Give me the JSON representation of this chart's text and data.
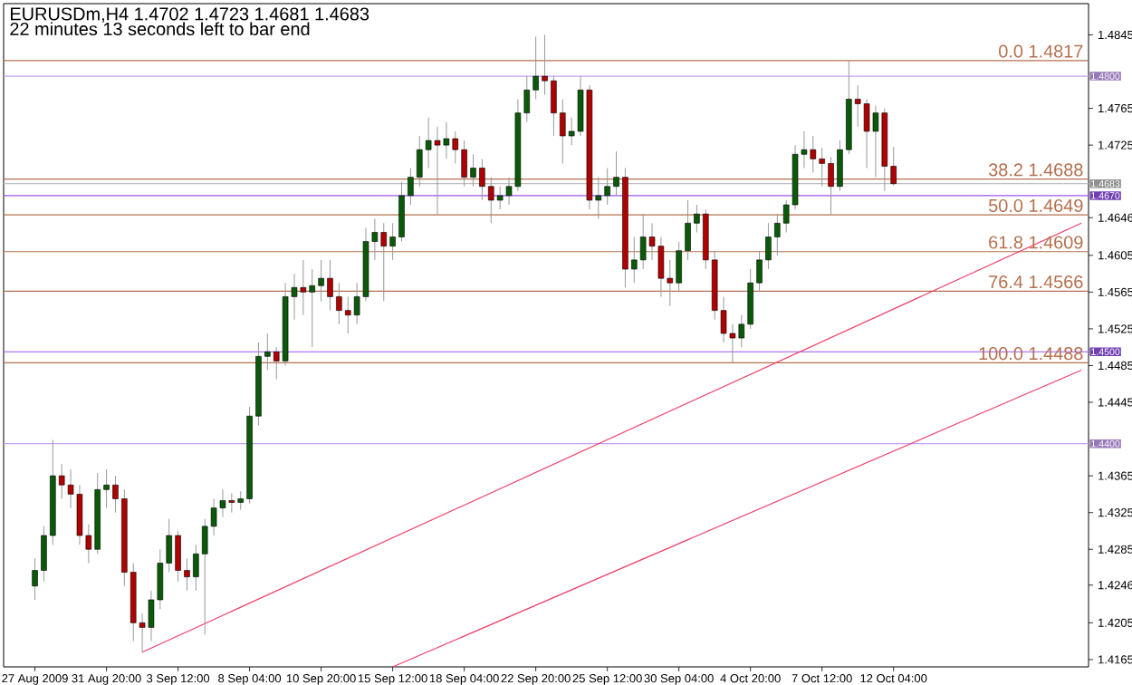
{
  "chart_data": {
    "type": "candlestick",
    "title": "EURUSDm,H4  1.4702 1.4723 1.4681 1.4683",
    "subtitle": "22 minutes 13 seconds left to bar end",
    "categories": [
      "27 Aug 2009",
      null,
      null,
      null,
      null,
      null,
      null,
      null,
      "31 Aug 20:00",
      null,
      null,
      null,
      null,
      null,
      null,
      null,
      "3 Sep 12:00",
      null,
      null,
      null,
      null,
      null,
      null,
      null,
      "8 Sep 04:00",
      null,
      null,
      null,
      null,
      null,
      null,
      null,
      "10 Sep 20:00",
      null,
      null,
      null,
      null,
      null,
      null,
      null,
      "15 Sep 12:00",
      null,
      null,
      null,
      null,
      null,
      null,
      null,
      "18 Sep 04:00",
      null,
      null,
      null,
      null,
      null,
      null,
      null,
      "22 Sep 20:00",
      null,
      null,
      null,
      null,
      null,
      null,
      null,
      "25 Sep 12:00",
      null,
      null,
      null,
      null,
      null,
      null,
      null,
      "30 Sep 04:00",
      null,
      null,
      null,
      null,
      null,
      null,
      null,
      "4 Oct 20:00",
      null,
      null,
      null,
      null,
      null,
      null,
      null,
      "7 Oct 12:00",
      null,
      null,
      null,
      null,
      null,
      null,
      null,
      "12 Oct 04:00",
      null,
      null,
      null,
      null,
      null,
      null,
      null,
      null,
      null,
      null,
      null,
      null,
      null,
      null,
      null,
      null,
      null,
      null,
      null,
      null,
      null
    ],
    "ylim": [
      1.4157,
      1.4879
    ],
    "yticks": [
      1.4845,
      1.4765,
      1.4725,
      1.4646,
      1.4605,
      1.4565,
      1.4525,
      1.4485,
      1.4445,
      1.4365,
      1.4325,
      1.4285,
      1.4246,
      1.4205,
      1.4165
    ],
    "ohlc": [
      [
        1.4245,
        1.4275,
        1.423,
        1.4262
      ],
      [
        1.4262,
        1.431,
        1.425,
        1.43
      ],
      [
        1.43,
        1.4404,
        1.429,
        1.4365
      ],
      [
        1.4365,
        1.4378,
        1.434,
        1.4355
      ],
      [
        1.4355,
        1.4372,
        1.433,
        1.4345
      ],
      [
        1.4345,
        1.4355,
        1.429,
        1.43
      ],
      [
        1.43,
        1.4312,
        1.427,
        1.4285
      ],
      [
        1.4285,
        1.4368,
        1.428,
        1.435
      ],
      [
        1.435,
        1.4372,
        1.433,
        1.4355
      ],
      [
        1.4355,
        1.4365,
        1.4325,
        1.434
      ],
      [
        1.434,
        1.435,
        1.4245,
        1.426
      ],
      [
        1.426,
        1.427,
        1.4185,
        1.4205
      ],
      [
        1.4205,
        1.4215,
        1.4173,
        1.42
      ],
      [
        1.42,
        1.424,
        1.4185,
        1.423
      ],
      [
        1.423,
        1.4285,
        1.422,
        1.427
      ],
      [
        1.427,
        1.4318,
        1.426,
        1.43
      ],
      [
        1.43,
        1.4305,
        1.425,
        1.4262
      ],
      [
        1.4262,
        1.4275,
        1.424,
        1.4255
      ],
      [
        1.4255,
        1.429,
        1.424,
        1.428
      ],
      [
        1.428,
        1.4318,
        1.4192,
        1.431
      ],
      [
        1.431,
        1.434,
        1.43,
        1.433
      ],
      [
        1.433,
        1.435,
        1.432,
        1.4338
      ],
      [
        1.4338,
        1.4346,
        1.4325,
        1.4336
      ],
      [
        1.4336,
        1.4348,
        1.4328,
        1.434
      ],
      [
        1.434,
        1.444,
        1.4335,
        1.443
      ],
      [
        1.443,
        1.451,
        1.442,
        1.4495
      ],
      [
        1.4495,
        1.452,
        1.448,
        1.45
      ],
      [
        1.45,
        1.4505,
        1.447,
        1.449
      ],
      [
        1.449,
        1.4575,
        1.4485,
        1.456
      ],
      [
        1.456,
        1.4585,
        1.4535,
        1.457
      ],
      [
        1.457,
        1.46,
        1.454,
        1.4565
      ],
      [
        1.4565,
        1.459,
        1.4505,
        1.4572
      ],
      [
        1.4572,
        1.46,
        1.4555,
        1.458
      ],
      [
        1.458,
        1.46,
        1.4545,
        1.456
      ],
      [
        1.456,
        1.4575,
        1.453,
        1.4545
      ],
      [
        1.4545,
        1.456,
        1.452,
        1.454
      ],
      [
        1.454,
        1.4575,
        1.453,
        1.456
      ],
      [
        1.456,
        1.4635,
        1.4555,
        1.462
      ],
      [
        1.462,
        1.4645,
        1.46,
        1.463
      ],
      [
        1.463,
        1.464,
        1.4555,
        1.4615
      ],
      [
        1.4615,
        1.464,
        1.46,
        1.4625
      ],
      [
        1.4625,
        1.4685,
        1.462,
        1.467
      ],
      [
        1.467,
        1.47,
        1.466,
        1.469
      ],
      [
        1.469,
        1.4735,
        1.468,
        1.472
      ],
      [
        1.472,
        1.4755,
        1.47,
        1.473
      ],
      [
        1.473,
        1.4745,
        1.465,
        1.4725
      ],
      [
        1.4725,
        1.475,
        1.471,
        1.4732
      ],
      [
        1.4732,
        1.474,
        1.4705,
        1.472
      ],
      [
        1.472,
        1.473,
        1.468,
        1.469
      ],
      [
        1.469,
        1.4715,
        1.468,
        1.47
      ],
      [
        1.47,
        1.471,
        1.4665,
        1.468
      ],
      [
        1.468,
        1.469,
        1.464,
        1.4665
      ],
      [
        1.4665,
        1.468,
        1.4655,
        1.467
      ],
      [
        1.467,
        1.469,
        1.466,
        1.468
      ],
      [
        1.468,
        1.4775,
        1.4675,
        1.476
      ],
      [
        1.476,
        1.48,
        1.475,
        1.4785
      ],
      [
        1.4785,
        1.4843,
        1.4775,
        1.48
      ],
      [
        1.48,
        1.4845,
        1.478,
        1.4795
      ],
      [
        1.4795,
        1.48,
        1.4735,
        1.476
      ],
      [
        1.476,
        1.4775,
        1.4705,
        1.4735
      ],
      [
        1.4735,
        1.4755,
        1.4725,
        1.474
      ],
      [
        1.474,
        1.48,
        1.4735,
        1.4785
      ],
      [
        1.4785,
        1.479,
        1.4655,
        1.4665
      ],
      [
        1.4665,
        1.469,
        1.4645,
        1.467
      ],
      [
        1.467,
        1.47,
        1.466,
        1.468
      ],
      [
        1.468,
        1.4718,
        1.467,
        1.469
      ],
      [
        1.469,
        1.47,
        1.457,
        1.459
      ],
      [
        1.459,
        1.4625,
        1.4575,
        1.46
      ],
      [
        1.46,
        1.465,
        1.459,
        1.4625
      ],
      [
        1.4625,
        1.464,
        1.46,
        1.4615
      ],
      [
        1.4615,
        1.4625,
        1.456,
        1.458
      ],
      [
        1.458,
        1.46,
        1.455,
        1.4575
      ],
      [
        1.4575,
        1.462,
        1.4565,
        1.461
      ],
      [
        1.461,
        1.4665,
        1.46,
        1.464
      ],
      [
        1.464,
        1.466,
        1.463,
        1.465
      ],
      [
        1.465,
        1.4655,
        1.459,
        1.46
      ],
      [
        1.46,
        1.461,
        1.4535,
        1.4545
      ],
      [
        1.4545,
        1.456,
        1.451,
        1.452
      ],
      [
        1.452,
        1.453,
        1.4488,
        1.4515
      ],
      [
        1.4515,
        1.454,
        1.4505,
        1.453
      ],
      [
        1.453,
        1.459,
        1.4525,
        1.4575
      ],
      [
        1.4575,
        1.461,
        1.4565,
        1.46
      ],
      [
        1.46,
        1.464,
        1.459,
        1.4625
      ],
      [
        1.4625,
        1.465,
        1.4605,
        1.464
      ],
      [
        1.464,
        1.4665,
        1.463,
        1.466
      ],
      [
        1.466,
        1.4725,
        1.4655,
        1.4715
      ],
      [
        1.4715,
        1.474,
        1.47,
        1.472
      ],
      [
        1.472,
        1.4735,
        1.4695,
        1.471
      ],
      [
        1.471,
        1.4722,
        1.468,
        1.4705
      ],
      [
        1.4705,
        1.4712,
        1.465,
        1.468
      ],
      [
        1.468,
        1.473,
        1.4675,
        1.472
      ],
      [
        1.472,
        1.4817,
        1.4715,
        1.4775
      ],
      [
        1.4775,
        1.479,
        1.4745,
        1.477
      ],
      [
        1.477,
        1.4775,
        1.47,
        1.474
      ],
      [
        1.474,
        1.4768,
        1.469,
        1.476
      ],
      [
        1.476,
        1.4765,
        1.4675,
        1.4702
      ],
      [
        1.4702,
        1.4723,
        1.4681,
        1.4683
      ],
      null,
      null,
      null,
      null,
      null,
      null,
      null,
      null,
      null,
      null,
      null,
      null,
      null,
      null,
      null,
      null,
      null,
      null,
      null,
      null,
      null
    ],
    "series": [
      {
        "type": "line",
        "color": "#f0406a",
        "values": [
          null,
          null,
          null,
          null,
          null,
          null,
          null,
          null,
          null,
          null,
          null,
          null,
          1.4173,
          null,
          null,
          null,
          null,
          null,
          null,
          null,
          null,
          null,
          null,
          null,
          null,
          null,
          null,
          null,
          null,
          null,
          null,
          null,
          null,
          null,
          null,
          null,
          null,
          null,
          null,
          null,
          null,
          null,
          null,
          null,
          null,
          null,
          null,
          null,
          null,
          null,
          null,
          null,
          null,
          null,
          null,
          null,
          null,
          null,
          null,
          null,
          null,
          null,
          null,
          null,
          null,
          null,
          null,
          null,
          null,
          null,
          null,
          null,
          null,
          null,
          null,
          null,
          null,
          null,
          null,
          null,
          null,
          null,
          null,
          null,
          null,
          null,
          null,
          null,
          null,
          null,
          null,
          null,
          null,
          null,
          null,
          null,
          null,
          null,
          null,
          null,
          null,
          null,
          null,
          null,
          null,
          null,
          null,
          null,
          null,
          null,
          null,
          null,
          null,
          null,
          null,
          null,
          null,
          1.464
        ]
      },
      {
        "type": "line",
        "color": "#f0406a",
        "values": [
          null,
          null,
          null,
          null,
          null,
          null,
          null,
          null,
          null,
          null,
          null,
          null,
          null,
          null,
          null,
          null,
          null,
          null,
          null,
          null,
          null,
          null,
          null,
          null,
          null,
          null,
          null,
          null,
          null,
          null,
          null,
          null,
          null,
          null,
          null,
          null,
          null,
          null,
          null,
          null,
          1.4157,
          null,
          null,
          null,
          null,
          null,
          null,
          null,
          null,
          null,
          null,
          null,
          null,
          null,
          null,
          null,
          null,
          null,
          null,
          null,
          null,
          null,
          null,
          null,
          null,
          null,
          null,
          null,
          null,
          null,
          null,
          null,
          null,
          null,
          null,
          null,
          null,
          null,
          null,
          null,
          null,
          null,
          null,
          null,
          null,
          null,
          null,
          null,
          null,
          null,
          null,
          null,
          null,
          null,
          null,
          null,
          null,
          null,
          null,
          null,
          null,
          null,
          null,
          null,
          null,
          null,
          null,
          null,
          null,
          null,
          null,
          null,
          null,
          null,
          null,
          null,
          null,
          1.448
        ]
      }
    ],
    "ref_lines": [
      {
        "axis": "y",
        "value": 1.48,
        "label": "1.4800",
        "color": "#c9a0f5"
      },
      {
        "axis": "y",
        "value": 1.467,
        "label": "1.4670",
        "color": "#9a55f0"
      },
      {
        "axis": "y",
        "value": 1.45,
        "label": "1.4500",
        "color": "#9a55f0"
      },
      {
        "axis": "y",
        "value": 1.44,
        "label": "1.4400",
        "color": "#c9a0f5"
      },
      {
        "axis": "y",
        "value": 1.4683,
        "label": "1.4683",
        "color": "#c0c0c0"
      },
      {
        "axis": "y",
        "value": 1.4817,
        "color": "#b5704f"
      },
      {
        "axis": "y",
        "value": 1.4688,
        "color": "#b5704f"
      },
      {
        "axis": "y",
        "value": 1.4649,
        "color": "#b5704f"
      },
      {
        "axis": "y",
        "value": 1.4609,
        "color": "#b5704f"
      },
      {
        "axis": "y",
        "value": 1.4566,
        "color": "#b5704f"
      },
      {
        "axis": "y",
        "value": 1.4488,
        "color": "#b5704f"
      }
    ],
    "annotations": [
      {
        "text": "0.0  1.4817",
        "y": 1.4817
      },
      {
        "text": "38.2  1.4688",
        "y": 1.4688
      },
      {
        "text": "50.0  1.4649",
        "y": 1.4649
      },
      {
        "text": "61.8  1.4609",
        "y": 1.4609
      },
      {
        "text": "76.4  1.4566",
        "y": 1.4566
      },
      {
        "text": "100.0  1.4488",
        "y": 1.4488
      }
    ]
  }
}
